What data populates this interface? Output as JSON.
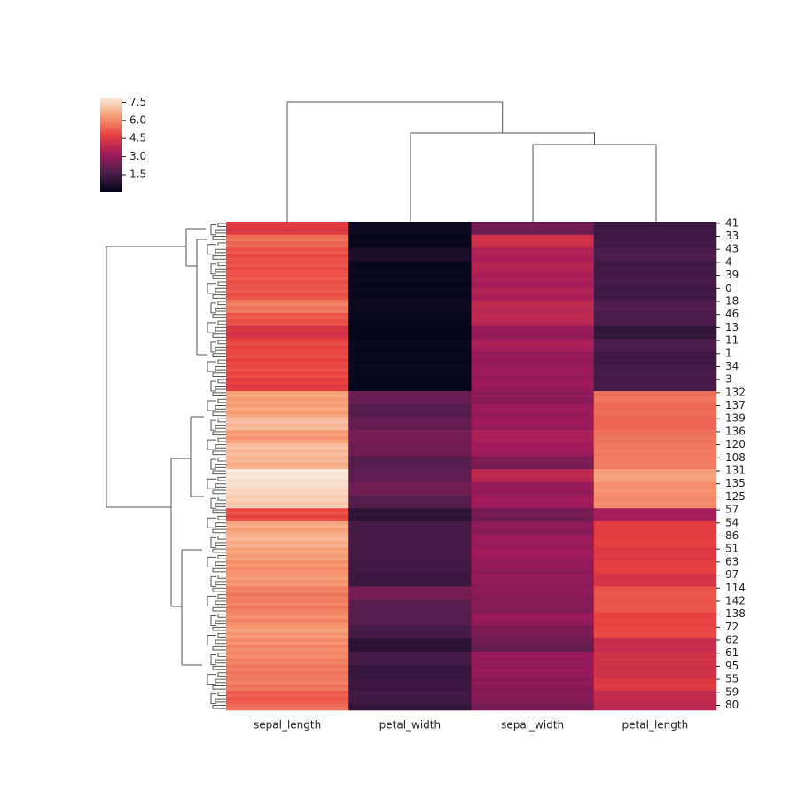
{
  "chart_data": {
    "type": "heatmap",
    "columns": [
      "sepal_length",
      "petal_width",
      "sepal_width",
      "petal_length"
    ],
    "rows": [
      "41",
      null,
      null,
      null,
      "33",
      null,
      null,
      null,
      "43",
      null,
      null,
      null,
      "4",
      null,
      null,
      null,
      "39",
      null,
      null,
      null,
      "0",
      null,
      null,
      null,
      "18",
      null,
      null,
      null,
      "46",
      null,
      null,
      null,
      "13",
      null,
      null,
      null,
      "11",
      null,
      null,
      null,
      "1",
      null,
      null,
      null,
      "34",
      null,
      null,
      null,
      "3",
      null,
      null,
      null,
      "132",
      null,
      null,
      null,
      "137",
      null,
      null,
      null,
      "139",
      null,
      null,
      null,
      "136",
      null,
      null,
      null,
      "120",
      null,
      null,
      null,
      "108",
      null,
      null,
      null,
      "131",
      null,
      null,
      null,
      "135",
      null,
      null,
      null,
      "125",
      null,
      null,
      null,
      "57",
      null,
      null,
      null,
      "54",
      null,
      null,
      null,
      "86",
      null,
      null,
      null,
      "51",
      null,
      null,
      null,
      "63",
      null,
      null,
      null,
      "97",
      null,
      null,
      null,
      "114",
      null,
      null,
      null,
      "142",
      null,
      null,
      null,
      "138",
      null,
      null,
      null,
      "72",
      null,
      null,
      null,
      "62",
      null,
      null,
      null,
      "61",
      null,
      null,
      null,
      "95",
      null,
      null,
      null,
      "55",
      null,
      null,
      null,
      "59",
      null,
      null,
      null,
      "80",
      null
    ],
    "values": [
      [
        4.5,
        0.3,
        2.3,
        1.3
      ],
      [
        4.7,
        0.3,
        2.4,
        1.3
      ],
      [
        4.4,
        0.3,
        2.3,
        1.4
      ],
      [
        4.6,
        0.3,
        2.2,
        1.3
      ],
      [
        5.5,
        0.2,
        4.2,
        1.4
      ],
      [
        5.7,
        0.2,
        4.3,
        1.4
      ],
      [
        5.4,
        0.2,
        4.2,
        1.5
      ],
      [
        5.6,
        0.2,
        4.1,
        1.4
      ],
      [
        5.0,
        0.6,
        3.5,
        1.6
      ],
      [
        5.2,
        0.6,
        3.6,
        1.6
      ],
      [
        4.9,
        0.6,
        3.5,
        1.7
      ],
      [
        5.1,
        0.6,
        3.4,
        1.6
      ],
      [
        5.0,
        0.2,
        3.6,
        1.4
      ],
      [
        5.2,
        0.2,
        3.7,
        1.4
      ],
      [
        4.9,
        0.2,
        3.6,
        1.5
      ],
      [
        5.1,
        0.2,
        3.5,
        1.4
      ],
      [
        5.1,
        0.2,
        3.4,
        1.5
      ],
      [
        5.3,
        0.2,
        3.5,
        1.5
      ],
      [
        5.0,
        0.2,
        3.4,
        1.6
      ],
      [
        5.2,
        0.2,
        3.3,
        1.5
      ],
      [
        5.1,
        0.2,
        3.5,
        1.4
      ],
      [
        5.3,
        0.2,
        3.6,
        1.4
      ],
      [
        5.0,
        0.2,
        3.5,
        1.5
      ],
      [
        5.2,
        0.2,
        3.4,
        1.4
      ],
      [
        5.7,
        0.3,
        3.8,
        1.7
      ],
      [
        5.9,
        0.3,
        3.9,
        1.7
      ],
      [
        5.6,
        0.3,
        3.8,
        1.8
      ],
      [
        5.8,
        0.3,
        3.7,
        1.7
      ],
      [
        5.1,
        0.2,
        3.8,
        1.6
      ],
      [
        5.3,
        0.2,
        3.9,
        1.6
      ],
      [
        5.0,
        0.2,
        3.8,
        1.7
      ],
      [
        5.2,
        0.2,
        3.7,
        1.6
      ],
      [
        4.3,
        0.1,
        3.0,
        1.1
      ],
      [
        4.5,
        0.1,
        3.1,
        1.1
      ],
      [
        4.2,
        0.1,
        3.0,
        1.2
      ],
      [
        4.4,
        0.1,
        2.9,
        1.1
      ],
      [
        4.8,
        0.2,
        3.4,
        1.6
      ],
      [
        5.0,
        0.2,
        3.5,
        1.6
      ],
      [
        4.7,
        0.2,
        3.4,
        1.7
      ],
      [
        4.9,
        0.2,
        3.3,
        1.6
      ],
      [
        4.9,
        0.2,
        3.0,
        1.4
      ],
      [
        5.1,
        0.2,
        3.1,
        1.4
      ],
      [
        4.8,
        0.2,
        3.0,
        1.5
      ],
      [
        5.0,
        0.2,
        2.9,
        1.4
      ],
      [
        4.9,
        0.2,
        3.1,
        1.5
      ],
      [
        5.1,
        0.2,
        3.2,
        1.5
      ],
      [
        4.8,
        0.2,
        3.1,
        1.6
      ],
      [
        5.0,
        0.2,
        3.0,
        1.5
      ],
      [
        4.6,
        0.2,
        3.1,
        1.5
      ],
      [
        4.8,
        0.2,
        3.2,
        1.5
      ],
      [
        4.5,
        0.2,
        3.1,
        1.6
      ],
      [
        4.7,
        0.2,
        3.0,
        1.5
      ],
      [
        6.4,
        2.2,
        2.8,
        5.6
      ],
      [
        6.6,
        2.2,
        2.9,
        5.6
      ],
      [
        6.3,
        2.2,
        2.8,
        5.7
      ],
      [
        6.5,
        2.2,
        2.7,
        5.6
      ],
      [
        6.4,
        1.8,
        3.1,
        5.5
      ],
      [
        6.6,
        1.8,
        3.2,
        5.5
      ],
      [
        6.3,
        1.8,
        3.1,
        5.6
      ],
      [
        6.5,
        1.8,
        3.0,
        5.5
      ],
      [
        6.9,
        2.1,
        3.1,
        5.4
      ],
      [
        7.1,
        2.1,
        3.2,
        5.4
      ],
      [
        6.8,
        2.1,
        3.1,
        5.5
      ],
      [
        7.0,
        2.1,
        3.0,
        5.4
      ],
      [
        6.3,
        2.4,
        3.4,
        5.6
      ],
      [
        6.5,
        2.4,
        3.5,
        5.6
      ],
      [
        6.2,
        2.4,
        3.4,
        5.7
      ],
      [
        6.4,
        2.4,
        3.3,
        5.6
      ],
      [
        6.9,
        2.3,
        3.2,
        5.7
      ],
      [
        7.1,
        2.3,
        3.3,
        5.7
      ],
      [
        6.8,
        2.3,
        3.2,
        5.8
      ],
      [
        7.0,
        2.3,
        3.1,
        5.7
      ],
      [
        6.7,
        1.8,
        2.5,
        5.8
      ],
      [
        6.9,
        1.8,
        2.6,
        5.8
      ],
      [
        6.6,
        1.8,
        2.5,
        5.9
      ],
      [
        6.8,
        1.8,
        2.4,
        5.8
      ],
      [
        7.9,
        2.0,
        3.8,
        6.4
      ],
      [
        7.7,
        2.0,
        3.9,
        6.4
      ],
      [
        7.8,
        2.0,
        3.8,
        6.5
      ],
      [
        7.6,
        2.0,
        3.7,
        6.4
      ],
      [
        7.7,
        2.3,
        3.0,
        6.1
      ],
      [
        7.6,
        2.3,
        3.1,
        6.1
      ],
      [
        7.4,
        2.3,
        3.0,
        6.2
      ],
      [
        7.5,
        2.3,
        2.9,
        6.1
      ],
      [
        7.2,
        1.8,
        3.2,
        6.0
      ],
      [
        7.4,
        1.8,
        3.3,
        6.0
      ],
      [
        7.1,
        1.8,
        3.2,
        6.1
      ],
      [
        7.3,
        1.8,
        3.1,
        6.0
      ],
      [
        4.9,
        1.0,
        2.4,
        3.3
      ],
      [
        5.1,
        1.0,
        2.5,
        3.3
      ],
      [
        4.8,
        1.0,
        2.4,
        3.4
      ],
      [
        5.0,
        1.0,
        2.3,
        3.3
      ],
      [
        6.5,
        1.5,
        2.8,
        4.6
      ],
      [
        6.7,
        1.5,
        2.9,
        4.6
      ],
      [
        6.4,
        1.5,
        2.8,
        4.7
      ],
      [
        6.6,
        1.5,
        2.7,
        4.6
      ],
      [
        6.7,
        1.5,
        3.1,
        4.7
      ],
      [
        6.9,
        1.5,
        3.2,
        4.7
      ],
      [
        6.6,
        1.5,
        3.1,
        4.8
      ],
      [
        6.8,
        1.5,
        3.0,
        4.7
      ],
      [
        6.4,
        1.5,
        3.2,
        4.5
      ],
      [
        6.6,
        1.5,
        3.3,
        4.5
      ],
      [
        6.3,
        1.5,
        3.2,
        4.6
      ],
      [
        6.5,
        1.5,
        3.1,
        4.5
      ],
      [
        6.1,
        1.4,
        2.9,
        4.7
      ],
      [
        6.3,
        1.4,
        3.0,
        4.7
      ],
      [
        6.0,
        1.4,
        2.9,
        4.8
      ],
      [
        6.2,
        1.4,
        2.8,
        4.7
      ],
      [
        6.2,
        1.3,
        2.9,
        4.3
      ],
      [
        6.4,
        1.3,
        3.0,
        4.3
      ],
      [
        6.1,
        1.3,
        2.9,
        4.4
      ],
      [
        6.3,
        1.3,
        2.8,
        4.3
      ],
      [
        5.8,
        2.4,
        2.8,
        5.1
      ],
      [
        6.0,
        2.4,
        2.9,
        5.1
      ],
      [
        5.7,
        2.4,
        2.8,
        5.2
      ],
      [
        5.9,
        2.4,
        2.7,
        5.1
      ],
      [
        5.8,
        1.9,
        2.7,
        5.1
      ],
      [
        6.0,
        1.9,
        2.8,
        5.1
      ],
      [
        5.7,
        1.9,
        2.7,
        5.2
      ],
      [
        5.9,
        1.9,
        2.6,
        5.1
      ],
      [
        6.0,
        1.8,
        3.0,
        4.8
      ],
      [
        6.2,
        1.8,
        3.1,
        4.8
      ],
      [
        5.9,
        1.8,
        3.0,
        4.9
      ],
      [
        6.1,
        1.8,
        2.9,
        4.8
      ],
      [
        6.3,
        1.5,
        2.5,
        4.9
      ],
      [
        6.5,
        1.5,
        2.6,
        4.9
      ],
      [
        6.2,
        1.5,
        2.5,
        5.0
      ],
      [
        6.4,
        1.5,
        2.4,
        4.9
      ],
      [
        6.0,
        1.0,
        2.2,
        4.0
      ],
      [
        6.2,
        1.0,
        2.3,
        4.0
      ],
      [
        5.9,
        1.0,
        2.2,
        4.1
      ],
      [
        6.1,
        1.0,
        2.1,
        4.0
      ],
      [
        5.9,
        1.5,
        3.0,
        4.2
      ],
      [
        6.1,
        1.5,
        3.1,
        4.2
      ],
      [
        5.8,
        1.5,
        3.0,
        4.3
      ],
      [
        6.0,
        1.5,
        2.9,
        4.2
      ],
      [
        5.7,
        1.2,
        3.0,
        4.2
      ],
      [
        5.9,
        1.2,
        3.1,
        4.2
      ],
      [
        5.6,
        1.2,
        3.0,
        4.3
      ],
      [
        5.8,
        1.2,
        2.9,
        4.2
      ],
      [
        5.7,
        1.3,
        2.8,
        4.5
      ],
      [
        5.9,
        1.3,
        2.9,
        4.5
      ],
      [
        5.6,
        1.3,
        2.8,
        4.6
      ],
      [
        5.8,
        1.3,
        2.7,
        4.5
      ],
      [
        5.2,
        1.4,
        2.7,
        3.9
      ],
      [
        5.4,
        1.4,
        2.8,
        3.9
      ],
      [
        5.1,
        1.4,
        2.7,
        4.0
      ],
      [
        5.3,
        1.4,
        2.6,
        3.9
      ],
      [
        5.5,
        1.1,
        2.4,
        3.8
      ],
      [
        5.7,
        1.1,
        2.5,
        3.8
      ]
    ],
    "clim": [
      0.1,
      7.9
    ],
    "cticks": [
      1.5,
      {
        "value": 3,
        "label": "3.0"
      },
      4.5,
      {
        "value": 6,
        "label": "6.0"
      },
      7.5
    ],
    "colormap": [
      "#03051a",
      "#4c1d4b",
      "#a11a5b",
      "#e83f3f",
      "#f69c73",
      "#faebdd"
    ]
  }
}
